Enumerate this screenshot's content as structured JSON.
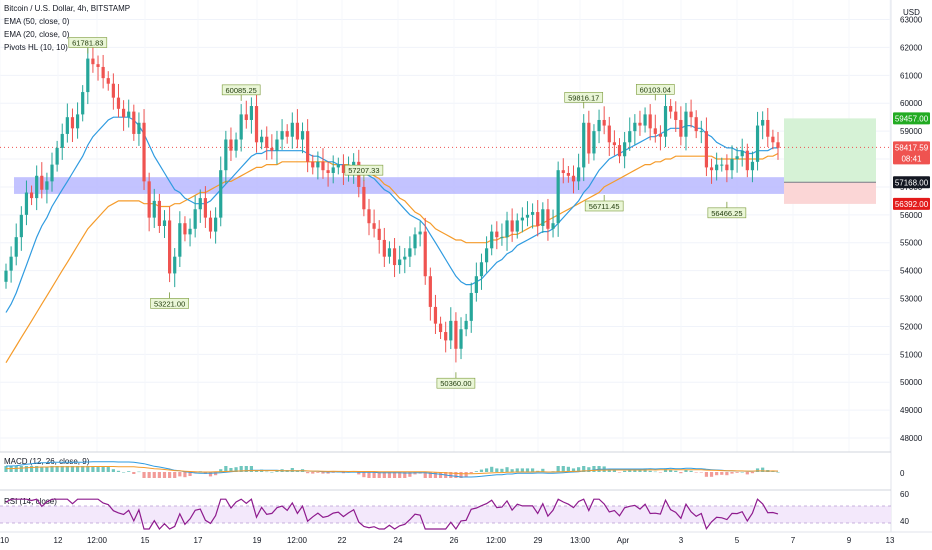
{
  "legend": {
    "symbol": "Bitcoin / U.S. Dollar, 4h, BITSTAMP",
    "ema50": "EMA (50, close, 0)",
    "ema20": "EMA (20, close, 0)",
    "pivots": "Pivots HL (10, 10)"
  },
  "currency": "USD",
  "macd_label": "MACD (12, 26, close, 9)",
  "rsi_label": "RSI (14, close)",
  "colors": {
    "up": "#26a69a",
    "down": "#ef5350",
    "ema20": "#2f9be0",
    "ema50": "#f59b2a",
    "zone": "#b9b9ff",
    "rsi": "#8e1b8e",
    "macd_line": "#2f9be0",
    "macd_signal": "#f59b2a",
    "target": "#d6f2d6",
    "stop": "#fbd6d6",
    "pivot_bg": "#eaf6d7",
    "pivot_border": "#7a9a3a"
  },
  "chart_data": {
    "type": "candlestick",
    "ylim": [
      47500,
      63700
    ],
    "y_ticks": [
      "63000",
      "62000",
      "61000",
      "60000",
      "59000",
      "58000",
      "57000",
      "56000",
      "55000",
      "54000",
      "53000",
      "52000",
      "51000",
      "50000",
      "49000",
      "48000"
    ],
    "x_ticks": [
      "10",
      "12",
      "12:00",
      "15",
      "17",
      "19",
      "12:00",
      "22",
      "24",
      "26",
      "12:00",
      "29",
      "13:00",
      "Apr",
      "3",
      "5",
      "7",
      "9",
      "13"
    ],
    "closes": [
      54000,
      54500,
      55200,
      56000,
      56800,
      56600,
      57400,
      56900,
      57200,
      57800,
      58400,
      58900,
      59500,
      59100,
      59600,
      60400,
      61600,
      61400,
      61300,
      60900,
      60700,
      60200,
      59800,
      59500,
      59700,
      58900,
      59300,
      57200,
      55900,
      56500,
      55600,
      55800,
      53900,
      54500,
      55700,
      55300,
      55500,
      56200,
      56600,
      55900,
      55400,
      55900,
      57600,
      58700,
      58300,
      58700,
      59600,
      59400,
      59900,
      58600,
      58800,
      58400,
      58300,
      58700,
      59000,
      58800,
      59300,
      58700,
      59000,
      57900,
      57700,
      57900,
      57600,
      57500,
      57700,
      57800,
      57500,
      57600,
      57900,
      57000,
      56200,
      55700,
      55500,
      55100,
      54500,
      54800,
      54200,
      54400,
      54500,
      54800,
      55300,
      55400,
      53800,
      52700,
      52100,
      51800,
      51500,
      52200,
      51200,
      51900,
      52200,
      53200,
      53800,
      54300,
      54800,
      55400,
      55200,
      55200,
      55800,
      55400,
      55800,
      55900,
      56000,
      56100,
      55600,
      56200,
      55500,
      55700,
      57600,
      57500,
      57400,
      57200,
      57700,
      59300,
      58200,
      59000,
      59400,
      59200,
      58600,
      58500,
      58100,
      58600,
      59000,
      59300,
      59200,
      59600,
      59100,
      58900,
      58800,
      59900,
      59700,
      59400,
      58800,
      59700,
      59500,
      59000,
      59000,
      57700,
      57600,
      57800,
      57800,
      57600,
      58000,
      58100,
      58300,
      57600,
      57900,
      59200,
      59400,
      58800,
      58600,
      58400
    ],
    "ema20": [
      52500,
      52800,
      53200,
      53700,
      54200,
      54700,
      55200,
      55600,
      55900,
      56300,
      56600,
      56900,
      57200,
      57500,
      57800,
      58100,
      58500,
      58800,
      59000,
      59200,
      59400,
      59500,
      59500,
      59500,
      59500,
      59400,
      59200,
      58900,
      58500,
      58100,
      57800,
      57500,
      57200,
      56900,
      56800,
      56600,
      56500,
      56400,
      56400,
      56400,
      56500,
      56700,
      56900,
      57100,
      57300,
      57500,
      57700,
      57900,
      58100,
      58200,
      58200,
      58300,
      58300,
      58300,
      58300,
      58300,
      58300,
      58300,
      58300,
      58200,
      58100,
      58100,
      58000,
      57900,
      57900,
      57800,
      57800,
      57700,
      57700,
      57600,
      57500,
      57400,
      57300,
      57100,
      56900,
      56800,
      56600,
      56400,
      56200,
      56000,
      55900,
      55800,
      55600,
      55300,
      55000,
      54700,
      54400,
      54100,
      53800,
      53600,
      53500,
      53500,
      53600,
      53700,
      53900,
      54100,
      54300,
      54400,
      54600,
      54700,
      54900,
      55000,
      55100,
      55200,
      55300,
      55400,
      55400,
      55500,
      55700,
      55900,
      56100,
      56300,
      56500,
      56800,
      57000,
      57300,
      57600,
      57800,
      58000,
      58100,
      58200,
      58300,
      58400,
      58500,
      58600,
      58700,
      58800,
      58800,
      58900,
      59000,
      59100,
      59100,
      59100,
      59200,
      59200,
      59100,
      59100,
      58900,
      58800,
      58600,
      58500,
      58400,
      58400,
      58300,
      58300,
      58200,
      58200,
      58300,
      58300,
      58300,
      58400,
      58400
    ],
    "ema50": [
      50700,
      51000,
      51300,
      51600,
      51900,
      52200,
      52500,
      52800,
      53100,
      53400,
      53700,
      54000,
      54300,
      54600,
      54900,
      55200,
      55500,
      55700,
      55900,
      56100,
      56300,
      56400,
      56500,
      56500,
      56500,
      56500,
      56500,
      56400,
      56400,
      56400,
      56300,
      56300,
      56300,
      56400,
      56400,
      56500,
      56600,
      56700,
      56800,
      56800,
      56900,
      57000,
      57100,
      57200,
      57200,
      57300,
      57400,
      57500,
      57600,
      57700,
      57700,
      57800,
      57800,
      57800,
      57900,
      57900,
      57900,
      57900,
      57900,
      57900,
      57900,
      57900,
      57900,
      57900,
      57800,
      57800,
      57800,
      57800,
      57700,
      57700,
      57600,
      57500,
      57400,
      57300,
      57100,
      57000,
      56800,
      56600,
      56500,
      56300,
      56100,
      56000,
      55800,
      55700,
      55500,
      55400,
      55300,
      55200,
      55100,
      55100,
      55000,
      55000,
      55000,
      55000,
      55000,
      55100,
      55100,
      55200,
      55200,
      55300,
      55300,
      55400,
      55500,
      55600,
      55600,
      55700,
      55800,
      55900,
      56000,
      56100,
      56200,
      56300,
      56400,
      56500,
      56600,
      56700,
      56800,
      57000,
      57100,
      57200,
      57300,
      57400,
      57500,
      57600,
      57700,
      57800,
      57800,
      57900,
      57900,
      58000,
      58000,
      58100,
      58100,
      58100,
      58100,
      58100,
      58100,
      58100,
      58100,
      58000,
      58000,
      58000,
      58000,
      58000,
      58000,
      58000,
      58000,
      58000,
      58000,
      58100,
      58100,
      58200
    ],
    "pivot_labels": [
      {
        "text": "61781.83",
        "price": 61781.83,
        "pos": "high"
      },
      {
        "text": "53221.00",
        "price": 53221.0,
        "pos": "low"
      },
      {
        "text": "60085.25",
        "price": 60085.25,
        "pos": "high"
      },
      {
        "text": "57207.33",
        "price": 57207.33,
        "pos": "high"
      },
      {
        "text": "50360.00",
        "price": 50360.0,
        "pos": "low"
      },
      {
        "text": "59816.17",
        "price": 59816.17,
        "pos": "high"
      },
      {
        "text": "56711.45",
        "price": 56711.45,
        "pos": "low"
      },
      {
        "text": "60103.04",
        "price": 60103.04,
        "pos": "high"
      },
      {
        "text": "56466.25",
        "price": 56466.25,
        "pos": "low"
      }
    ],
    "support_zone": [
      56750,
      57350
    ],
    "position": {
      "target": 59457.0,
      "entry": 57168.0,
      "stop": 56392.0
    },
    "price_labels": [
      {
        "text": "59457.00",
        "price": 59457.0,
        "color": "#22ab22"
      },
      {
        "text": "58417.59",
        "price": 58417.59,
        "color": "#ef5350"
      },
      {
        "text": "08:41",
        "price": 58417.59,
        "color": "#ef5350"
      },
      {
        "text": "57168.00",
        "price": 57168.0,
        "color": "#131722"
      },
      {
        "text": "56392.00",
        "price": 56392.0,
        "color": "#e31b1b"
      }
    ],
    "macd_tick": "0",
    "rsi_ticks": [
      "60",
      "40"
    ]
  }
}
